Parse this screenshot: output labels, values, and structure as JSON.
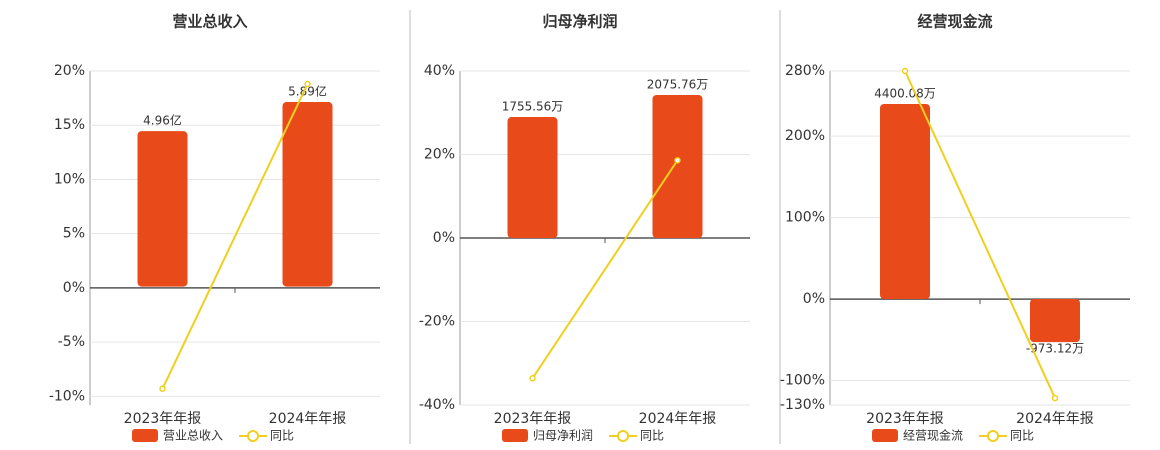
{
  "chart_data": [
    {
      "type": "bar-line",
      "title": "营业总收入",
      "categories": [
        "2023年年报",
        "2024年年报"
      ],
      "series": [
        {
          "name": "营业总收入",
          "type": "bar",
          "axis": "y2",
          "color": "#e84a1a",
          "values": [
            4.96,
            5.89
          ],
          "value_labels": [
            "4.96亿",
            "5.89亿"
          ]
        },
        {
          "name": "同比",
          "type": "line",
          "color": "#f0cf1e",
          "values": [
            -9.3,
            18.8
          ]
        }
      ],
      "ylim": [
        -10.8,
        20
      ],
      "yticks": [
        {
          "value": -10,
          "label": "-10%"
        },
        {
          "value": -5,
          "label": "-5%"
        },
        {
          "value": 0,
          "label": "0%"
        },
        {
          "value": 5,
          "label": "5%"
        },
        {
          "value": 10,
          "label": "10%"
        },
        {
          "value": 15,
          "label": "15%"
        },
        {
          "value": 20,
          "label": "20%"
        }
      ],
      "y2lim": [
        -3.78,
        6.88
      ],
      "grid": true
    },
    {
      "type": "bar-line",
      "title": "归母净利润",
      "categories": [
        "2023年年报",
        "2024年年报"
      ],
      "series": [
        {
          "name": "归母净利润",
          "type": "bar",
          "axis": "y2",
          "color": "#e84a1a",
          "values": [
            1755.56,
            2075.76
          ],
          "value_labels": [
            "1755.56万",
            "2075.76万"
          ]
        },
        {
          "name": "同比",
          "type": "line",
          "color": "#f0cf1e",
          "values": [
            -33.6,
            18.6
          ]
        }
      ],
      "ylim": [
        -40,
        40
      ],
      "yticks": [
        {
          "value": -40,
          "label": "-40%"
        },
        {
          "value": -20,
          "label": "-20%"
        },
        {
          "value": 0,
          "label": "0%"
        },
        {
          "value": 20,
          "label": "20%"
        },
        {
          "value": 40,
          "label": "40%"
        }
      ],
      "y2lim": [
        -2424,
        2424
      ],
      "grid": true
    },
    {
      "type": "bar-line",
      "title": "经营现金流",
      "categories": [
        "2023年年报",
        "2024年年报"
      ],
      "series": [
        {
          "name": "经营现金流",
          "type": "bar",
          "axis": "y2",
          "color": "#e84a1a",
          "values": [
            4400.08,
            -973.12
          ],
          "value_labels": [
            "4400.08万",
            "-973.12万"
          ]
        },
        {
          "name": "同比",
          "type": "line",
          "color": "#f0cf1e",
          "values": [
            280,
            -121.5
          ]
        }
      ],
      "ylim": [
        -130,
        280
      ],
      "yticks": [
        {
          "value": -130,
          "label": "-130%"
        },
        {
          "value": -100,
          "label": "-100%"
        },
        {
          "value": 0,
          "label": "0%"
        },
        {
          "value": 100,
          "label": "100%"
        },
        {
          "value": 200,
          "label": "200%"
        },
        {
          "value": 280,
          "label": "280%"
        }
      ],
      "y2lim": [
        -2392,
        5145
      ],
      "grid": true
    }
  ]
}
